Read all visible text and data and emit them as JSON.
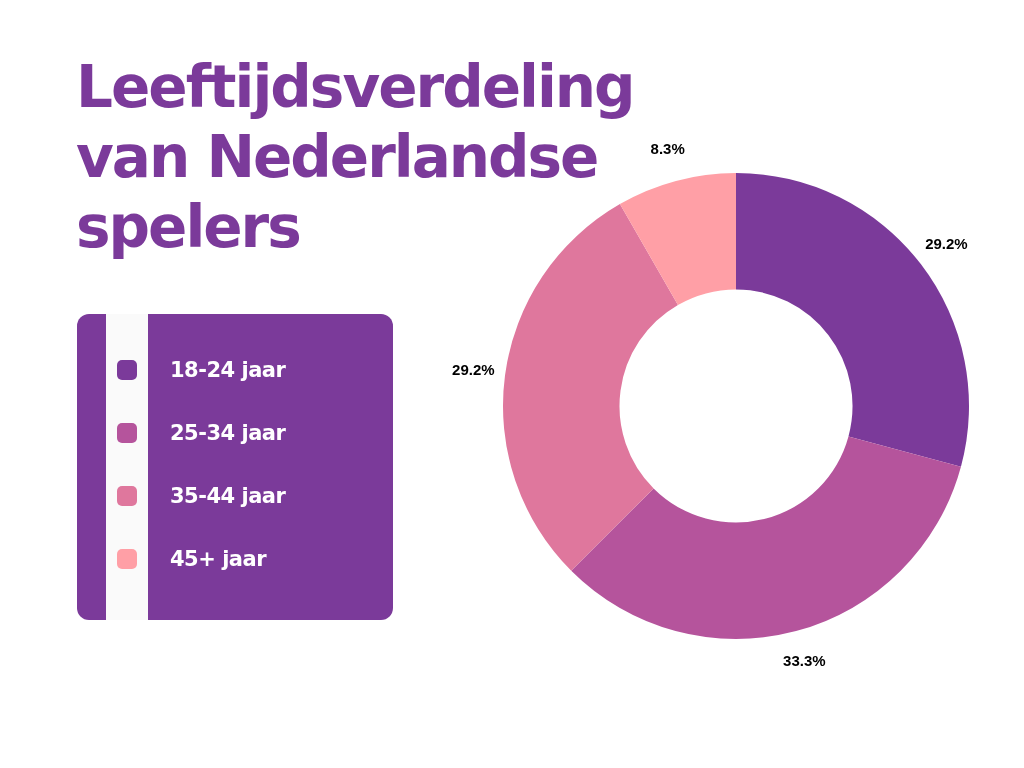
{
  "chart_data": {
    "type": "donut",
    "title": "Leeftijdsverdeling van Nederlandse spelers",
    "categories": [
      "18-24 jaar",
      "25-34 jaar",
      "35-44 jaar",
      "45+ jaar"
    ],
    "values": [
      29.2,
      33.3,
      29.2,
      8.3
    ],
    "colors": [
      "#7b3a9a",
      "#b5549c",
      "#df779d",
      "#ff9fa6"
    ],
    "value_labels": [
      "29.2%",
      "33.3%",
      "29.2%",
      "8.3%"
    ],
    "legend": "left"
  }
}
